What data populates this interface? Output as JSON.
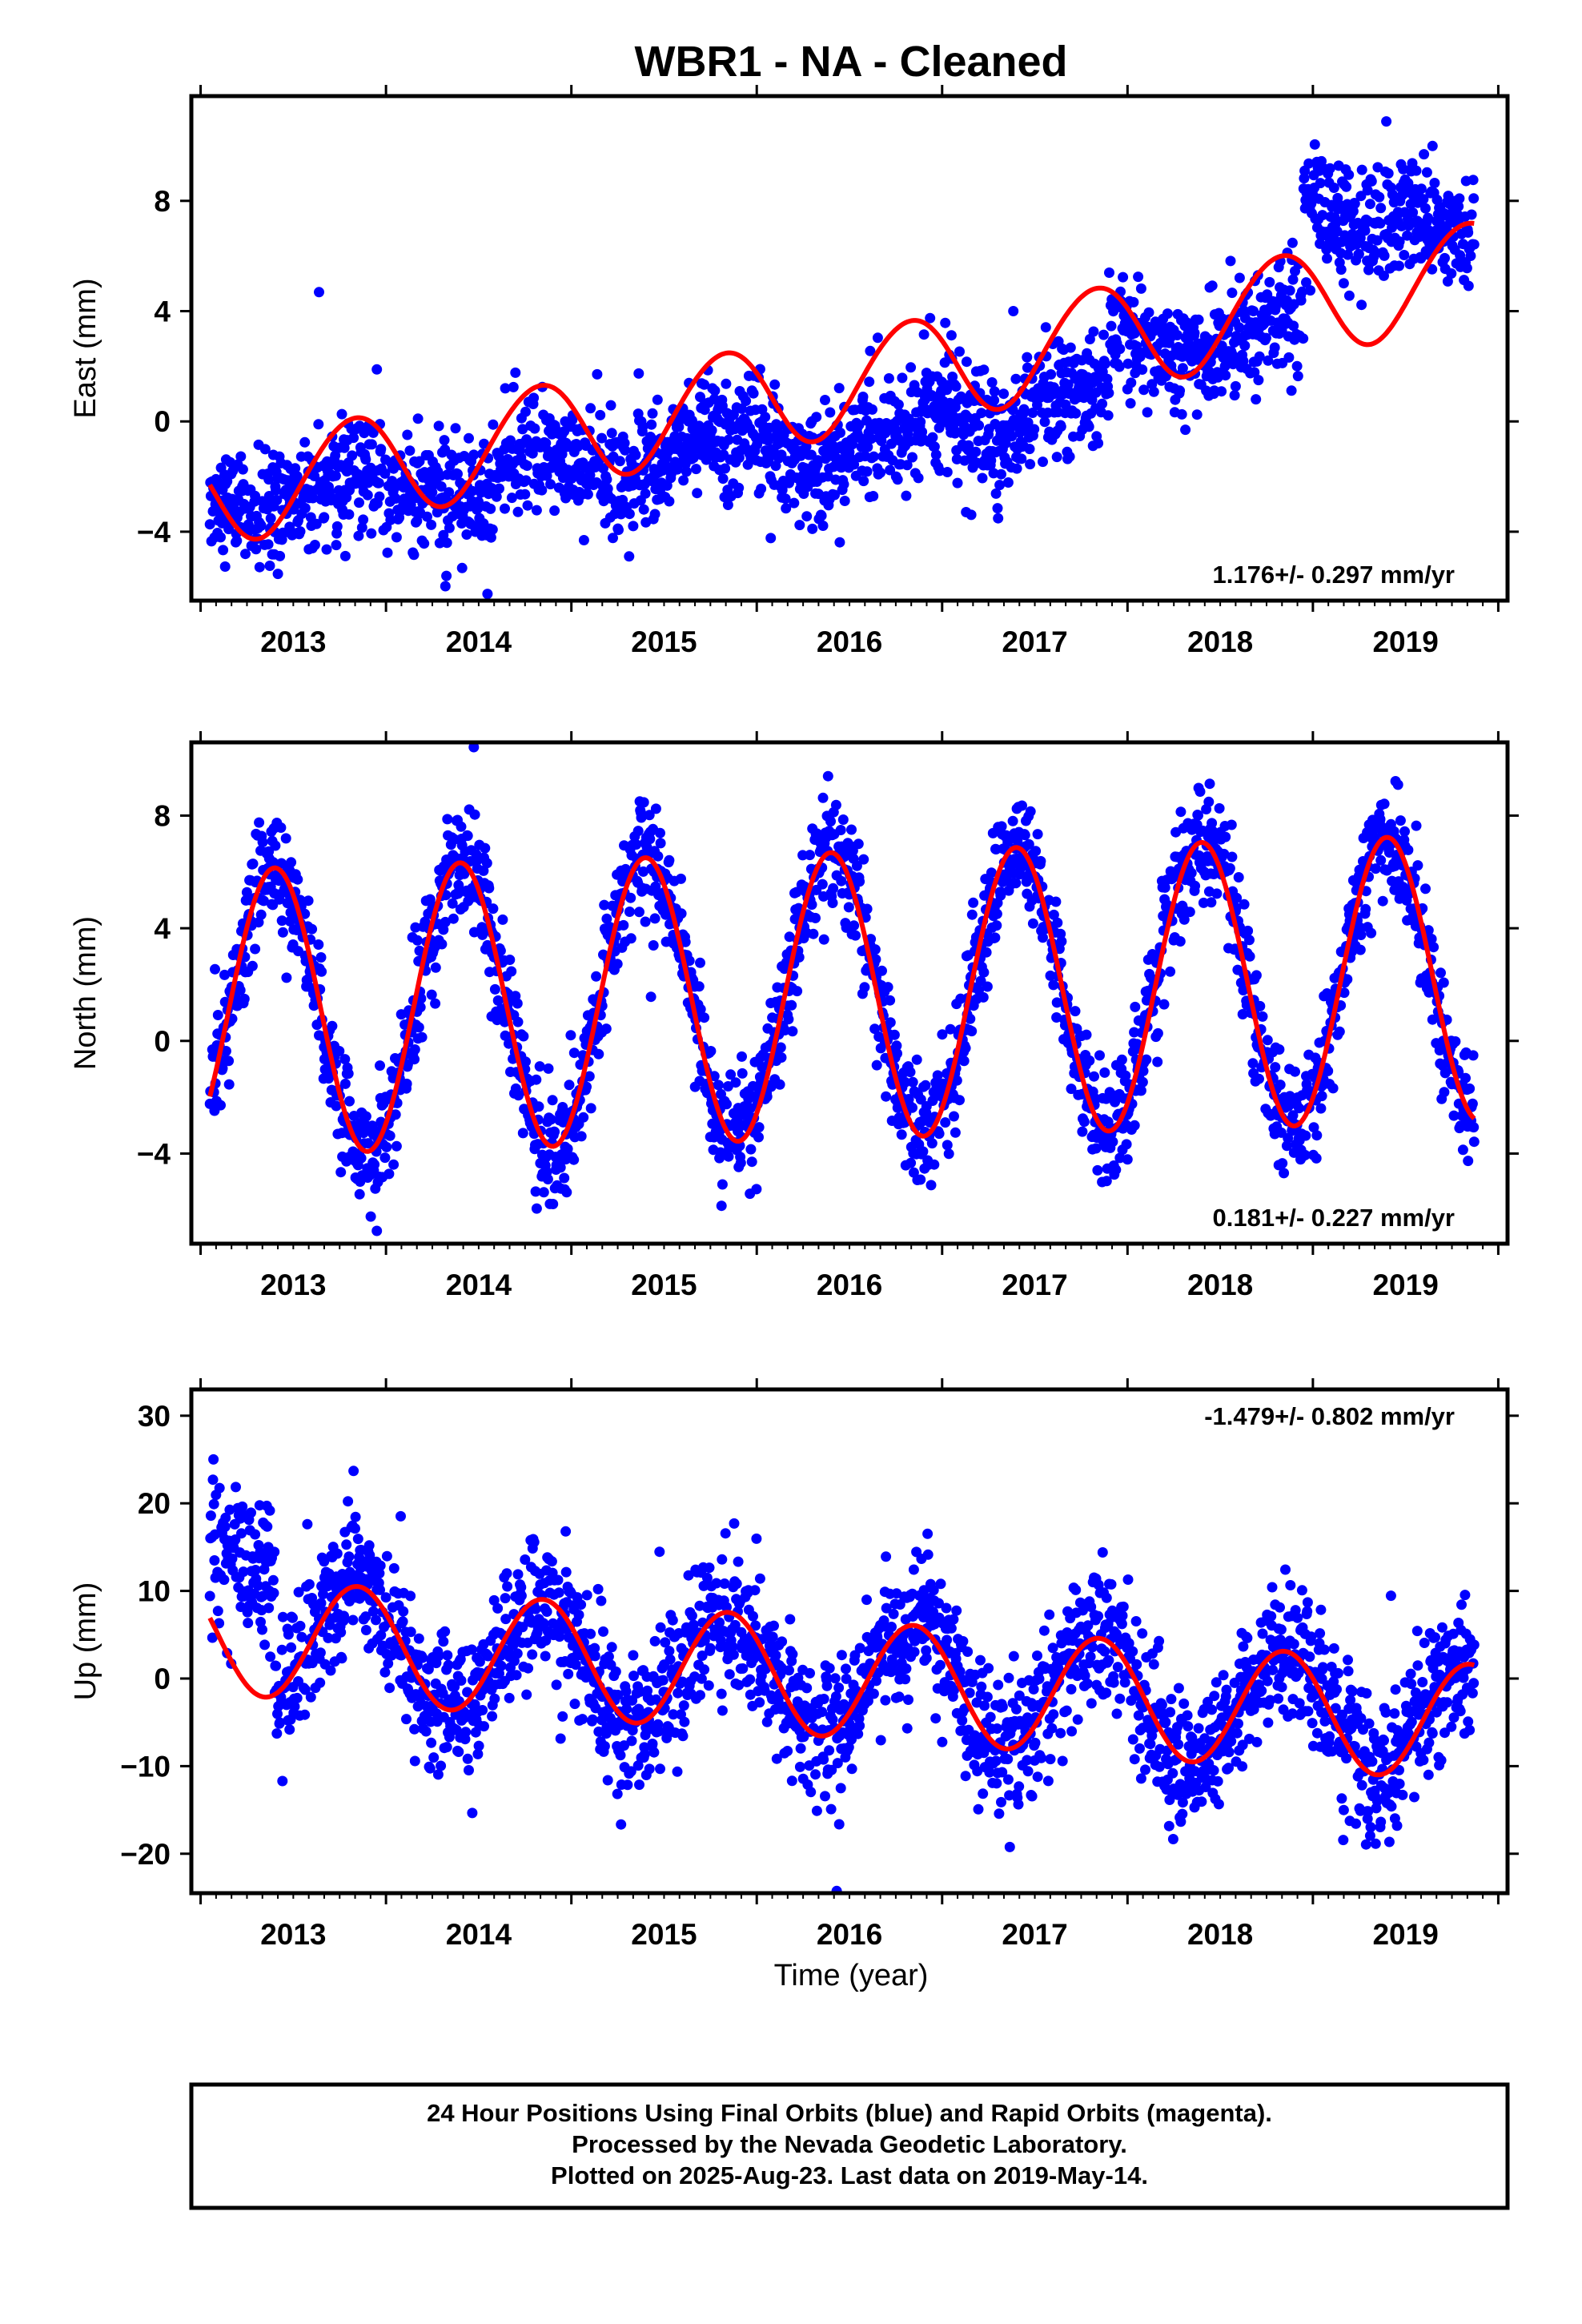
{
  "title": "WBR1  - NA - Cleaned",
  "x_axis_label": "Time (year)",
  "colors": {
    "final_orbits": "#0000ff",
    "rapid_orbits": "#ff00ff",
    "model": "#ff0000",
    "frame": "#000000"
  },
  "caption": {
    "line1": "24 Hour Positions Using Final Orbits (blue) and Rapid Orbits (magenta).",
    "line2": "Processed by the Nevada Geodetic Laboratory.",
    "line3": "Plotted on 2025-Aug-23. Last data on 2019-May-14."
  },
  "chart_data": [
    {
      "type": "scatter",
      "name": "east",
      "ylabel": "East (mm)",
      "rate_text": "1.176+/- 0.297 mm/yr",
      "xlim": [
        2012.45,
        2019.55
      ],
      "ylim": [
        -6.5,
        11.8
      ],
      "yticks": [
        -4,
        0,
        4,
        8
      ],
      "xticks": [
        2013,
        2014,
        2015,
        2016,
        2017,
        2018,
        2019
      ],
      "data_start": 2012.55,
      "data_end": 2019.37,
      "model": {
        "description": "linear trend plus annual and semi-annual terms",
        "offset": -2.62,
        "reference_epoch": 2012.55,
        "rate_mm_per_yr": 1.176,
        "annual_cos": -0.8,
        "annual_sin": 1.7,
        "semiannual_cos": 0.1,
        "semiannual_sin": 0.0
      },
      "scatter_sd": 1.05,
      "segments": [
        {
          "start": 2012.55,
          "end": 2013.75,
          "mean": -2.2
        },
        {
          "start": 2013.75,
          "end": 2014.5,
          "mean": -1.8
        },
        {
          "start": 2014.5,
          "end": 2015.6,
          "mean": -1.2
        },
        {
          "start": 2015.6,
          "end": 2016.4,
          "mean": -1.1
        },
        {
          "start": 2016.4,
          "end": 2017.4,
          "mean": -0.2
        },
        {
          "start": 2017.4,
          "end": 2018.45,
          "mean": 2.6
        },
        {
          "start": 2018.45,
          "end": 2019.1,
          "mean": 7.0
        },
        {
          "start": 2019.1,
          "end": 2019.37,
          "mean": 6.8
        }
      ]
    },
    {
      "type": "scatter",
      "name": "north",
      "ylabel": "North (mm)",
      "rate_text": "0.181+/- 0.227 mm/yr",
      "xlim": [
        2012.45,
        2019.55
      ],
      "ylim": [
        -7.2,
        10.6
      ],
      "yticks": [
        -4,
        0,
        4,
        8
      ],
      "xticks": [
        2013,
        2014,
        2015,
        2016,
        2017,
        2018,
        2019
      ],
      "data_start": 2012.55,
      "data_end": 2019.37,
      "model": {
        "description": "linear trend plus annual and semi-annual terms",
        "offset": 1.0,
        "reference_epoch": 2012.55,
        "rate_mm_per_yr": 0.181,
        "annual_cos": 4.1,
        "annual_sin": -3.0,
        "semiannual_cos": 0.0,
        "semiannual_sin": 0.0
      },
      "scatter_sd": 1.05,
      "segments": []
    },
    {
      "type": "scatter",
      "name": "up",
      "ylabel": "Up (mm)",
      "rate_text": "-1.479+/- 0.802 mm/yr",
      "xlim": [
        2012.45,
        2019.55
      ],
      "ylim": [
        -24.5,
        33.0
      ],
      "yticks": [
        -20,
        -10,
        0,
        10,
        20,
        30
      ],
      "xticks": [
        2013,
        2014,
        2015,
        2016,
        2017,
        2018,
        2019
      ],
      "data_start": 2012.55,
      "data_end": 2019.37,
      "model": {
        "description": "linear trend plus annual and semi-annual terms",
        "offset": 5.0,
        "reference_epoch": 2012.55,
        "rate_mm_per_yr": -1.479,
        "annual_cos": -3.8,
        "annual_sin": 5.5,
        "semiannual_cos": 0.0,
        "semiannual_sin": 0.0
      },
      "scatter_sd": 4.0,
      "segments": [
        {
          "start": 2012.55,
          "end": 2012.9,
          "mean": 13.0
        }
      ]
    }
  ]
}
